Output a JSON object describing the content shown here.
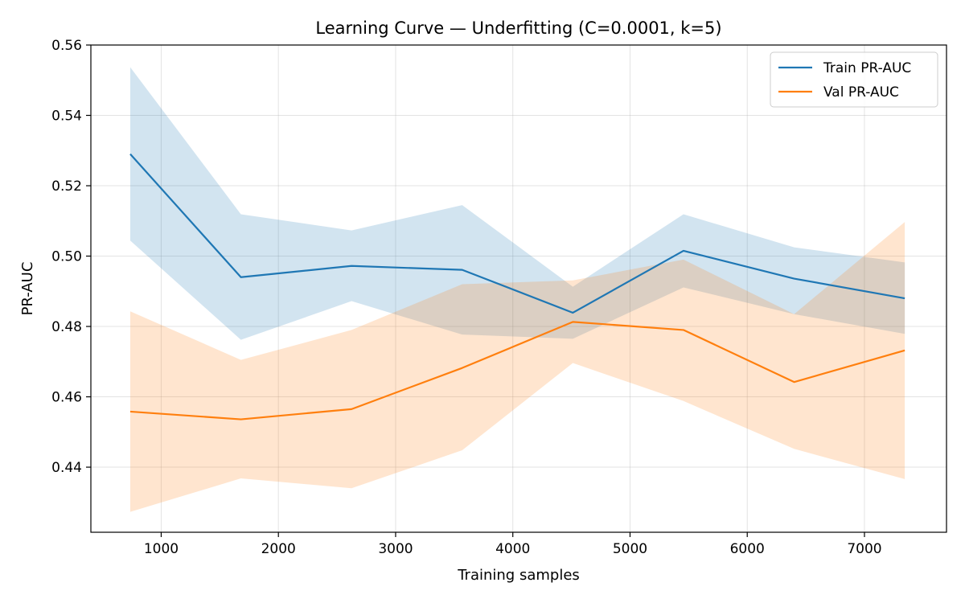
{
  "chart_data": {
    "type": "line",
    "title": "Learning Curve — Underfitting (C=0.0001, k=5)",
    "xlabel": "Training samples",
    "ylabel": "PR-AUC",
    "xlim": [
      400,
      7700
    ],
    "ylim": [
      0.4215,
      0.56
    ],
    "xticks": [
      1000,
      2000,
      3000,
      4000,
      5000,
      6000,
      7000
    ],
    "yticks": [
      0.44,
      0.46,
      0.48,
      0.5,
      0.52,
      0.54,
      0.56
    ],
    "xtick_labels": [
      "1000",
      "2000",
      "3000",
      "4000",
      "5000",
      "6000",
      "7000"
    ],
    "ytick_labels": [
      "0.44",
      "0.46",
      "0.48",
      "0.50",
      "0.52",
      "0.54",
      "0.56"
    ],
    "grid": true,
    "legend_position": "top-right",
    "x": [
      736,
      1680,
      2624,
      3568,
      4512,
      5456,
      6400,
      7344
    ],
    "series": [
      {
        "name": "Train PR-AUC",
        "color": "#1f77b4",
        "values": [
          0.529,
          0.494,
          0.4972,
          0.4961,
          0.4839,
          0.5015,
          0.4936,
          0.488
        ],
        "upper": [
          0.5537,
          0.5119,
          0.5073,
          0.5145,
          0.4913,
          0.5119,
          0.5025,
          0.4982
        ],
        "lower": [
          0.5044,
          0.4762,
          0.4872,
          0.4777,
          0.4765,
          0.4911,
          0.4835,
          0.4779
        ]
      },
      {
        "name": "Val PR-AUC",
        "color": "#ff7f0e",
        "values": [
          0.4558,
          0.4536,
          0.4565,
          0.4682,
          0.4813,
          0.479,
          0.4642,
          0.4732
        ],
        "upper": [
          0.4843,
          0.4705,
          0.479,
          0.492,
          0.4931,
          0.499,
          0.4835,
          0.5097
        ],
        "lower": [
          0.4273,
          0.4368,
          0.434,
          0.4448,
          0.4696,
          0.4588,
          0.4452,
          0.4366
        ]
      }
    ]
  }
}
